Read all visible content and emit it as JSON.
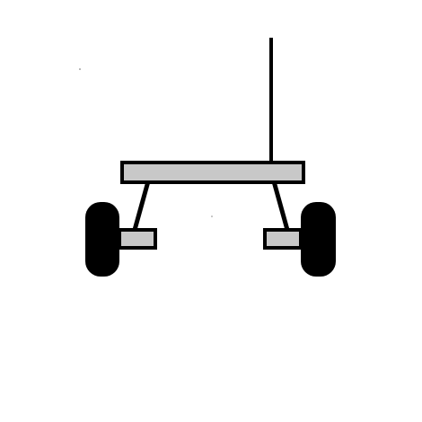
{
  "diagram": {
    "subject": "",
    "colors": {
      "background": "#ffffff",
      "outline": "#000000",
      "beam_fill": "#c8c8c8",
      "tire_fill": "#000000"
    },
    "parts": {
      "mast": "antenna-mast",
      "beam": "axle-beam",
      "left_strut": "left-strut",
      "right_strut": "right-strut",
      "left_hub": "left-hub-block",
      "right_hub": "right-hub-block",
      "left_wheel": "left-wheel",
      "right_wheel": "right-wheel"
    }
  }
}
